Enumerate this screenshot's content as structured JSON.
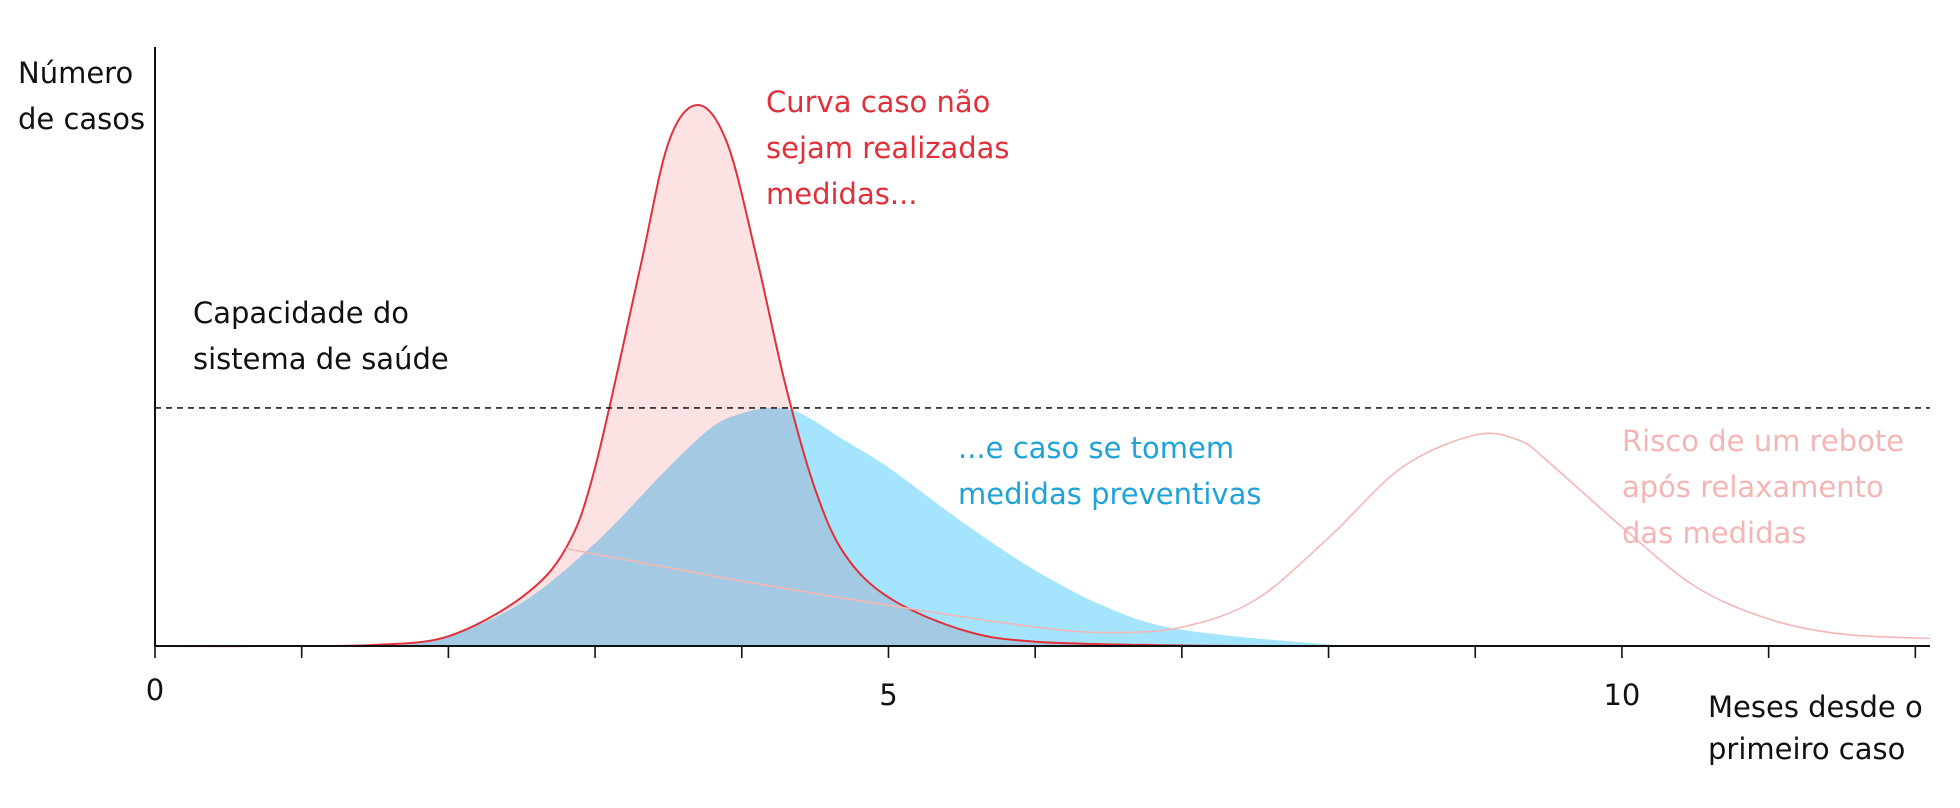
{
  "chart_data": {
    "type": "area",
    "ylabel": [
      "Número",
      "de casos"
    ],
    "xlabel": [
      "Meses desde o",
      "primeiro caso"
    ],
    "x_ticks": [
      0,
      1,
      2,
      3,
      4,
      5,
      6,
      7,
      8,
      9,
      10,
      11,
      12
    ],
    "x_tick_labels": [
      {
        "x": 0,
        "label": "0"
      },
      {
        "x": 5,
        "label": "5"
      },
      {
        "x": 10,
        "label": "10"
      }
    ],
    "xlim": [
      0,
      12.1
    ],
    "ylim": [
      0,
      1
    ],
    "grid": false,
    "capacity": {
      "y": 0.44,
      "style": "dashed",
      "label": [
        "Capacidade do",
        "sistema de saúde"
      ]
    },
    "series": [
      {
        "key": "sem_medidas",
        "label": [
          "Curva caso não",
          "sejam realizadas",
          "medidas..."
        ],
        "color": "#e0303a",
        "fill": "#fde2e4",
        "x": [
          0,
          1,
          1.5,
          2,
          2.5,
          2.8,
          3,
          3.3,
          3.5,
          3.7,
          3.9,
          4.1,
          4.3,
          4.5,
          4.7,
          5,
          5.5,
          6,
          7,
          8,
          8.5
        ],
        "y": [
          0,
          0,
          0.002,
          0.018,
          0.09,
          0.18,
          0.33,
          0.69,
          0.93,
          1.0,
          0.93,
          0.72,
          0.48,
          0.29,
          0.17,
          0.09,
          0.03,
          0.008,
          0.001,
          0,
          0
        ]
      },
      {
        "key": "com_medidas",
        "label": [
          "...e caso se tomem",
          "medidas preventivas"
        ],
        "color": "#1ea3d9",
        "fill": "#a4e4fd",
        "x": [
          0,
          1.5,
          2,
          2.5,
          3,
          3.5,
          3.8,
          4,
          4.2,
          4.4,
          4.7,
          5,
          5.5,
          6,
          6.5,
          7,
          8,
          8.5
        ],
        "y": [
          0,
          0,
          0.02,
          0.08,
          0.19,
          0.33,
          0.405,
          0.43,
          0.44,
          0.43,
          0.38,
          0.33,
          0.23,
          0.14,
          0.07,
          0.03,
          0.003,
          0
        ]
      },
      {
        "key": "rebote",
        "label": [
          "Risco de um rebote",
          "após relaxamento",
          "das medidas"
        ],
        "color": "#f4b6b4",
        "x": [
          2.8,
          3,
          4,
          5,
          6,
          6.5,
          7,
          7.5,
          8,
          8.5,
          9,
          9.3,
          9.5,
          10,
          10.5,
          11,
          11.5,
          12.1
        ],
        "y": [
          0.18,
          0.17,
          0.12,
          0.075,
          0.035,
          0.025,
          0.035,
          0.085,
          0.2,
          0.33,
          0.39,
          0.38,
          0.34,
          0.22,
          0.11,
          0.05,
          0.022,
          0.014
        ]
      }
    ]
  }
}
